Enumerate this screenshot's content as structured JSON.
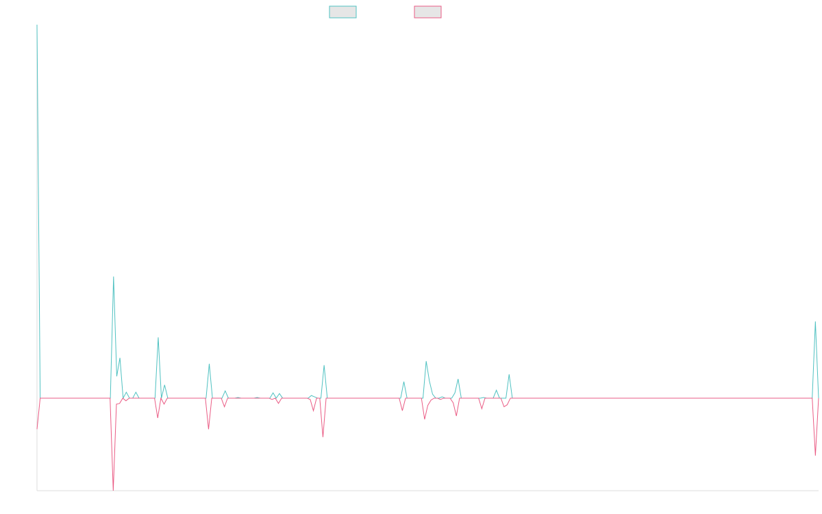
{
  "chart_data": {
    "type": "line",
    "title": "",
    "xlabel": "",
    "ylabel": "",
    "grid": false,
    "legend_position": "top-center",
    "ylim": [
      -140,
      565
    ],
    "colors": [
      "#4fc1c1",
      "#ea5b84"
    ],
    "series": [
      {
        "name": "",
        "color": "#4fc1c1",
        "values": [
          565,
          0,
          0,
          0,
          0,
          0,
          0,
          0,
          0,
          0,
          0,
          0,
          0,
          0,
          0,
          0,
          0,
          0,
          0,
          0,
          0,
          0,
          0,
          0,
          184,
          33,
          61,
          0,
          9,
          0,
          0,
          9,
          0,
          0,
          0,
          0,
          0,
          0,
          92,
          0,
          20,
          0,
          0,
          0,
          0,
          0,
          0,
          0,
          0,
          0,
          0,
          0,
          0,
          0,
          52,
          0,
          0,
          0,
          0,
          11,
          0,
          0,
          0,
          1,
          0,
          0,
          0,
          0,
          0,
          1,
          0,
          0,
          0,
          0,
          8,
          0,
          7,
          0,
          0,
          0,
          0,
          0,
          0,
          0,
          0,
          0,
          4,
          2,
          0,
          0,
          50,
          0,
          0,
          0,
          0,
          0,
          0,
          0,
          0,
          0,
          0,
          0,
          0,
          0,
          0,
          0,
          0,
          0,
          0,
          0,
          0,
          0,
          0,
          0,
          0,
          25,
          0,
          0,
          0,
          0,
          0,
          0,
          56,
          26,
          6,
          0,
          0,
          2,
          0,
          0,
          0,
          8,
          29,
          0,
          0,
          0,
          0,
          0,
          0,
          0,
          1,
          0,
          0,
          0,
          12,
          0,
          0,
          0,
          36,
          0,
          0,
          0,
          0,
          0,
          0,
          0,
          0,
          0,
          0,
          0,
          0,
          0,
          0,
          0,
          0,
          0,
          0,
          0,
          0,
          0,
          0,
          0,
          0,
          0,
          0,
          0,
          0,
          0,
          0,
          0,
          0,
          0,
          0,
          0,
          0,
          0,
          0,
          0,
          0,
          0,
          0,
          0,
          0,
          0,
          0,
          0,
          0,
          0,
          0,
          0,
          0,
          0,
          0,
          0,
          0,
          0,
          0,
          0,
          0,
          0,
          0,
          0,
          0,
          0,
          0,
          0,
          0,
          0,
          0,
          0,
          0,
          0,
          0,
          0,
          0,
          0,
          0,
          0,
          0,
          0,
          0,
          0,
          0,
          0,
          0,
          0,
          0,
          0,
          0,
          0,
          0,
          0,
          0,
          0,
          116,
          0
        ]
      },
      {
        "name": "",
        "color": "#ea5b84",
        "values": [
          -47,
          0,
          0,
          0,
          0,
          0,
          0,
          0,
          0,
          0,
          0,
          0,
          0,
          0,
          0,
          0,
          0,
          0,
          0,
          0,
          0,
          0,
          0,
          0,
          -140,
          -9,
          -8,
          0,
          -4,
          0,
          0,
          0,
          0,
          0,
          0,
          0,
          0,
          0,
          -30,
          0,
          -9,
          0,
          0,
          0,
          0,
          0,
          0,
          0,
          0,
          0,
          0,
          0,
          0,
          0,
          -47,
          0,
          0,
          0,
          0,
          -13,
          0,
          0,
          0,
          0,
          0,
          0,
          0,
          0,
          0,
          0,
          0,
          0,
          0,
          0,
          -2,
          0,
          -8,
          0,
          0,
          0,
          0,
          0,
          0,
          0,
          0,
          0,
          -2,
          -19,
          0,
          0,
          -59,
          0,
          0,
          0,
          0,
          0,
          0,
          0,
          0,
          0,
          0,
          0,
          0,
          0,
          0,
          0,
          0,
          0,
          0,
          0,
          0,
          0,
          0,
          0,
          0,
          -19,
          0,
          0,
          0,
          0,
          0,
          0,
          -32,
          -11,
          -3,
          0,
          0,
          -2,
          0,
          0,
          0,
          -7,
          -27,
          0,
          0,
          0,
          0,
          0,
          0,
          0,
          -16,
          0,
          0,
          0,
          0,
          0,
          0,
          -13,
          -10,
          0,
          0,
          0,
          0,
          0,
          0,
          0,
          0,
          0,
          0,
          0,
          0,
          0,
          0,
          0,
          0,
          0,
          0,
          0,
          0,
          0,
          0,
          0,
          0,
          0,
          0,
          0,
          0,
          0,
          0,
          0,
          0,
          0,
          0,
          0,
          0,
          0,
          0,
          0,
          0,
          0,
          0,
          0,
          0,
          0,
          0,
          0,
          0,
          0,
          0,
          0,
          0,
          0,
          0,
          0,
          0,
          0,
          0,
          0,
          0,
          0,
          0,
          0,
          0,
          0,
          0,
          0,
          0,
          0,
          0,
          0,
          0,
          0,
          0,
          0,
          0,
          0,
          0,
          0,
          0,
          0,
          0,
          0,
          0,
          0,
          0,
          0,
          0,
          0,
          0,
          0,
          0,
          0,
          0,
          0,
          0,
          -87,
          0
        ]
      }
    ]
  }
}
